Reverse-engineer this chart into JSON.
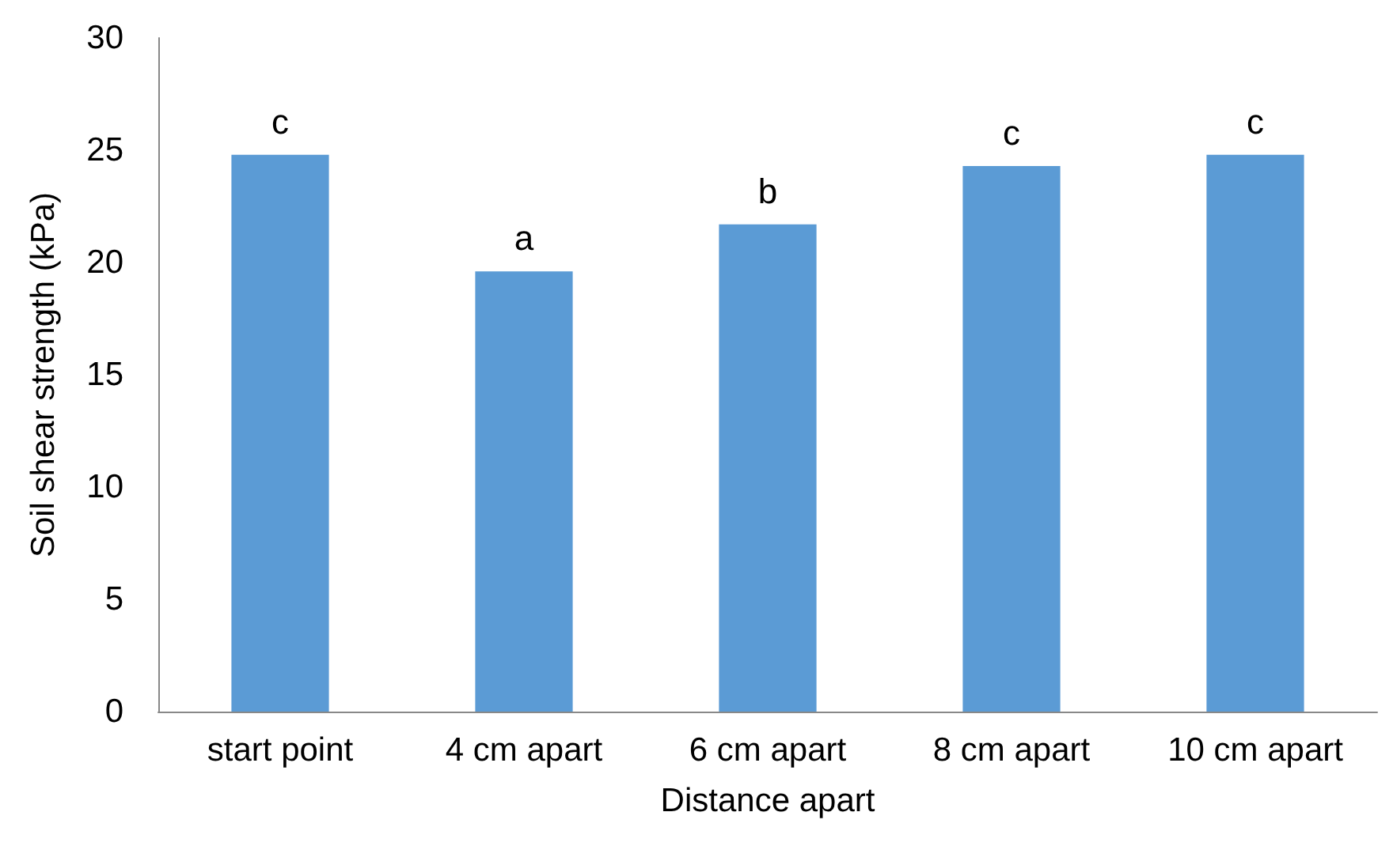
{
  "chart_data": {
    "type": "bar",
    "xlabel": "Distance apart",
    "ylabel": "Soil shear strength (kPa)",
    "categories": [
      "start point",
      "4 cm apart",
      "6 cm apart",
      "8 cm apart",
      "10 cm apart"
    ],
    "values": [
      24.8,
      19.6,
      21.7,
      24.3,
      24.8
    ],
    "value_labels": [
      "c",
      "a",
      "b",
      "c",
      "c"
    ],
    "color": "#5b9bd5",
    "ylim": [
      0,
      30
    ],
    "yticks": [
      0,
      5,
      10,
      15,
      20,
      25,
      30
    ]
  }
}
